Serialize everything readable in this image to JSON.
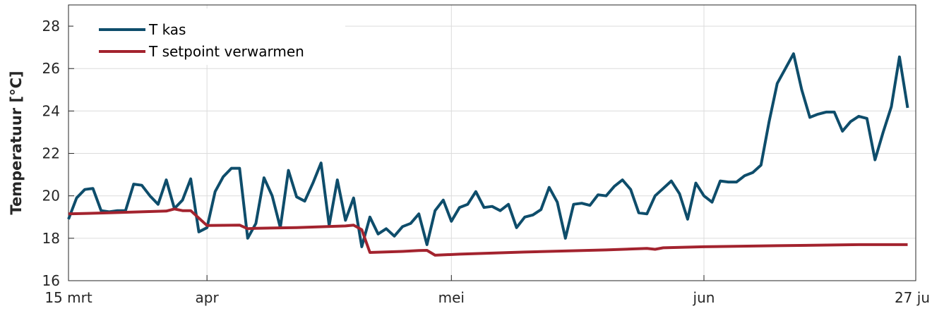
{
  "chart_data": {
    "type": "line",
    "title": "",
    "xlabel": "",
    "ylabel": "Temperatuur [°C]",
    "ylim": [
      16,
      29
    ],
    "yticks": [
      16,
      18,
      20,
      22,
      24,
      26,
      28
    ],
    "xlim": [
      "2021-03-15",
      "2021-06-27"
    ],
    "xticks": [
      {
        "date": "2021-03-15",
        "label": "15 mrt"
      },
      {
        "date": "2021-04-01",
        "label": "apr"
      },
      {
        "date": "2021-05-01",
        "label": "mei"
      },
      {
        "date": "2021-06-01",
        "label": "jun"
      },
      {
        "date": "2021-06-27",
        "label": "27 ju"
      }
    ],
    "grid": true,
    "legend_position": "top-left",
    "series": [
      {
        "name": "T kas",
        "color": "#0e4d6b",
        "points": [
          [
            "2021-03-15",
            18.9
          ],
          [
            "2021-03-16",
            19.9
          ],
          [
            "2021-03-17",
            20.3
          ],
          [
            "2021-03-18",
            20.35
          ],
          [
            "2021-03-19",
            19.3
          ],
          [
            "2021-03-20",
            19.25
          ],
          [
            "2021-03-21",
            19.3
          ],
          [
            "2021-03-22",
            19.3
          ],
          [
            "2021-03-23",
            20.55
          ],
          [
            "2021-03-24",
            20.5
          ],
          [
            "2021-03-25",
            20.0
          ],
          [
            "2021-03-26",
            19.6
          ],
          [
            "2021-03-27",
            20.75
          ],
          [
            "2021-03-28",
            19.4
          ],
          [
            "2021-03-29",
            19.8
          ],
          [
            "2021-03-30",
            20.8
          ],
          [
            "2021-03-31",
            18.3
          ],
          [
            "2021-04-01",
            18.5
          ],
          [
            "2021-04-02",
            20.2
          ],
          [
            "2021-04-03",
            20.9
          ],
          [
            "2021-04-04",
            21.3
          ],
          [
            "2021-04-05",
            21.3
          ],
          [
            "2021-04-06",
            18.0
          ],
          [
            "2021-04-07",
            18.7
          ],
          [
            "2021-04-08",
            20.85
          ],
          [
            "2021-04-09",
            20.0
          ],
          [
            "2021-04-10",
            18.5
          ],
          [
            "2021-04-11",
            21.2
          ],
          [
            "2021-04-12",
            19.95
          ],
          [
            "2021-04-13",
            19.75
          ],
          [
            "2021-04-14",
            20.6
          ],
          [
            "2021-04-15",
            21.55
          ],
          [
            "2021-04-16",
            18.6
          ],
          [
            "2021-04-17",
            20.75
          ],
          [
            "2021-04-18",
            18.85
          ],
          [
            "2021-04-19",
            19.9
          ],
          [
            "2021-04-20",
            17.6
          ],
          [
            "2021-04-21",
            19.0
          ],
          [
            "2021-04-22",
            18.2
          ],
          [
            "2021-04-23",
            18.45
          ],
          [
            "2021-04-24",
            18.1
          ],
          [
            "2021-04-25",
            18.55
          ],
          [
            "2021-04-26",
            18.7
          ],
          [
            "2021-04-27",
            19.15
          ],
          [
            "2021-04-28",
            17.7
          ],
          [
            "2021-04-29",
            19.3
          ],
          [
            "2021-04-30",
            19.8
          ],
          [
            "2021-05-01",
            18.8
          ],
          [
            "2021-05-02",
            19.45
          ],
          [
            "2021-05-03",
            19.6
          ],
          [
            "2021-05-04",
            20.2
          ],
          [
            "2021-05-05",
            19.45
          ],
          [
            "2021-05-06",
            19.5
          ],
          [
            "2021-05-07",
            19.3
          ],
          [
            "2021-05-08",
            19.6
          ],
          [
            "2021-05-09",
            18.5
          ],
          [
            "2021-05-10",
            19.0
          ],
          [
            "2021-05-11",
            19.1
          ],
          [
            "2021-05-12",
            19.35
          ],
          [
            "2021-05-13",
            20.4
          ],
          [
            "2021-05-14",
            19.7
          ],
          [
            "2021-05-15",
            18.0
          ],
          [
            "2021-05-16",
            19.6
          ],
          [
            "2021-05-17",
            19.65
          ],
          [
            "2021-05-18",
            19.55
          ],
          [
            "2021-05-19",
            20.05
          ],
          [
            "2021-05-20",
            20.0
          ],
          [
            "2021-05-21",
            20.45
          ],
          [
            "2021-05-22",
            20.75
          ],
          [
            "2021-05-23",
            20.3
          ],
          [
            "2021-05-24",
            19.2
          ],
          [
            "2021-05-25",
            19.15
          ],
          [
            "2021-05-26",
            20.0
          ],
          [
            "2021-05-27",
            20.35
          ],
          [
            "2021-05-28",
            20.7
          ],
          [
            "2021-05-29",
            20.1
          ],
          [
            "2021-05-30",
            18.9
          ],
          [
            "2021-05-31",
            20.6
          ],
          [
            "2021-06-01",
            20.0
          ],
          [
            "2021-06-02",
            19.7
          ],
          [
            "2021-06-03",
            20.7
          ],
          [
            "2021-06-04",
            20.65
          ],
          [
            "2021-06-05",
            20.65
          ],
          [
            "2021-06-06",
            20.95
          ],
          [
            "2021-06-07",
            21.1
          ],
          [
            "2021-06-08",
            21.45
          ],
          [
            "2021-06-09",
            23.5
          ],
          [
            "2021-06-10",
            25.3
          ],
          [
            "2021-06-11",
            26.0
          ],
          [
            "2021-06-12",
            26.7
          ],
          [
            "2021-06-13",
            25.0
          ],
          [
            "2021-06-14",
            23.7
          ],
          [
            "2021-06-15",
            23.85
          ],
          [
            "2021-06-16",
            23.95
          ],
          [
            "2021-06-17",
            23.95
          ],
          [
            "2021-06-18",
            23.05
          ],
          [
            "2021-06-19",
            23.5
          ],
          [
            "2021-06-20",
            23.75
          ],
          [
            "2021-06-21",
            23.65
          ],
          [
            "2021-06-22",
            21.7
          ],
          [
            "2021-06-23",
            23.0
          ],
          [
            "2021-06-24",
            24.2
          ],
          [
            "2021-06-25",
            26.55
          ],
          [
            "2021-06-26",
            24.15
          ]
        ]
      },
      {
        "name": "T setpoint verwarmen",
        "color": "#a3232e",
        "points": [
          [
            "2021-03-15",
            19.15
          ],
          [
            "2021-03-20",
            19.2
          ],
          [
            "2021-03-27",
            19.28
          ],
          [
            "2021-03-28",
            19.38
          ],
          [
            "2021-03-29",
            19.3
          ],
          [
            "2021-03-30",
            19.3
          ],
          [
            "2021-04-01",
            18.6
          ],
          [
            "2021-04-05",
            18.62
          ],
          [
            "2021-04-06",
            18.45
          ],
          [
            "2021-04-07",
            18.47
          ],
          [
            "2021-04-12",
            18.5
          ],
          [
            "2021-04-18",
            18.58
          ],
          [
            "2021-04-19",
            18.62
          ],
          [
            "2021-04-20",
            18.4
          ],
          [
            "2021-04-21",
            17.33
          ],
          [
            "2021-04-25",
            17.38
          ],
          [
            "2021-04-27",
            17.42
          ],
          [
            "2021-04-28",
            17.43
          ],
          [
            "2021-04-29",
            17.2
          ],
          [
            "2021-05-02",
            17.25
          ],
          [
            "2021-05-10",
            17.35
          ],
          [
            "2021-05-20",
            17.45
          ],
          [
            "2021-05-25",
            17.52
          ],
          [
            "2021-05-26",
            17.48
          ],
          [
            "2021-05-27",
            17.55
          ],
          [
            "2021-06-01",
            17.6
          ],
          [
            "2021-06-10",
            17.65
          ],
          [
            "2021-06-20",
            17.7
          ],
          [
            "2021-06-26",
            17.7
          ]
        ]
      }
    ]
  }
}
